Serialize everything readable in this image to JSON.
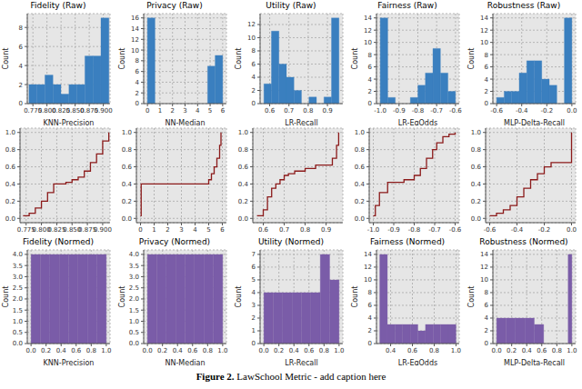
{
  "chart_data": [
    {
      "type": "histogram",
      "title": "Fidelity (Raw)",
      "x_label": "KNN-Precision",
      "y_label": "Count",
      "color": "#3a7fbf",
      "grid": true,
      "bins": [
        0.768,
        0.7822,
        0.7964,
        0.8106,
        0.8248,
        0.839,
        0.8532,
        0.8674,
        0.8816,
        0.8958,
        0.91
      ],
      "counts": [
        2,
        2,
        3,
        2,
        1,
        2,
        2,
        5,
        5,
        9
      ],
      "xlim": [
        0.765,
        0.912
      ],
      "xticks": [
        0.775,
        {
          "value": 0.8,
          "label": "0.800"
        },
        0.825,
        {
          "value": 0.85,
          "label": "0.850"
        },
        0.875,
        {
          "value": 0.9,
          "label": "0.900"
        }
      ],
      "ylim": [
        0,
        9.45
      ],
      "yticks": [
        0,
        2,
        4,
        6,
        8
      ]
    },
    {
      "type": "histogram",
      "title": "Privacy (Raw)",
      "x_label": "NN-Median",
      "y_label": "Count",
      "color": "#3a7fbf",
      "grid": true,
      "bins": [
        0,
        0.6,
        1.2,
        1.8,
        2.4,
        3.0,
        3.6,
        4.2,
        4.8,
        5.4,
        6.0
      ],
      "counts": [
        16,
        0,
        0,
        0,
        0,
        0,
        0,
        0,
        7,
        9
      ],
      "xlim": [
        -0.3,
        6.3
      ],
      "xticks": [
        0,
        1,
        2,
        3,
        4,
        5,
        6
      ],
      "ylim": [
        0,
        16.8
      ],
      "yticks": [
        0,
        2,
        4,
        6,
        8,
        10,
        12,
        14,
        16
      ]
    },
    {
      "type": "histogram",
      "title": "Utility (Raw)",
      "x_label": "LR-Recall",
      "y_label": "Count",
      "color": "#3a7fbf",
      "grid": true,
      "bins": [
        0.57,
        0.609,
        0.648,
        0.687,
        0.726,
        0.765,
        0.804,
        0.843,
        0.882,
        0.921,
        0.96
      ],
      "counts": [
        3,
        11,
        6,
        4,
        2,
        0,
        1,
        0,
        1,
        13
      ],
      "xlim": [
        0.55,
        0.98
      ],
      "xticks": [
        0.6,
        0.7,
        0.8,
        0.9
      ],
      "ylim": [
        0,
        13.65
      ],
      "yticks": [
        0,
        2,
        4,
        6,
        8,
        10,
        12
      ]
    },
    {
      "type": "histogram",
      "title": "Fairness (Raw)",
      "x_label": "LR-EqOdds",
      "y_label": "Count",
      "color": "#3a7fbf",
      "grid": true,
      "bins": [
        -1.0,
        -0.96,
        -0.92,
        -0.88,
        -0.84,
        -0.8,
        -0.76,
        -0.72,
        -0.68,
        -0.64,
        -0.6
      ],
      "counts": [
        14,
        1,
        0,
        0,
        1,
        3,
        5,
        9,
        5,
        2
      ],
      "xlim": [
        -1.02,
        -0.58
      ],
      "xticks": [
        {
          "value": -1,
          "label": "-1.0"
        },
        -0.9,
        -0.8,
        -0.7,
        -0.6
      ],
      "ylim": [
        0,
        14.7
      ],
      "yticks": [
        0,
        2,
        4,
        6,
        8,
        10,
        12,
        14
      ]
    },
    {
      "type": "histogram",
      "title": "Robustness (Raw)",
      "x_label": "MLP-Delta-Recall",
      "y_label": "Count",
      "color": "#3a7fbf",
      "grid": true,
      "bins": [
        -0.6,
        -0.54,
        -0.48,
        -0.42,
        -0.36,
        -0.3,
        -0.24,
        -0.18,
        -0.12,
        -0.06,
        0.0
      ],
      "counts": [
        1,
        2,
        2,
        5,
        7,
        7,
        4,
        3,
        0,
        14
      ],
      "xlim": [
        -0.63,
        0.03
      ],
      "xticks": [
        -0.6,
        -0.4,
        -0.2,
        {
          "value": 0,
          "label": "0.0"
        }
      ],
      "ylim": [
        0,
        14.7
      ],
      "yticks": [
        0,
        2,
        4,
        6,
        8,
        10,
        12,
        14
      ]
    },
    {
      "type": "line",
      "line_style": "step",
      "color": "#8b1a1a",
      "grid": true,
      "x": [
        0.77,
        0.78,
        0.79,
        0.8,
        0.81,
        0.82,
        0.83,
        0.84,
        0.85,
        0.86,
        0.87,
        0.88,
        0.89,
        0.9,
        0.91
      ],
      "values": [
        0.03,
        0.06,
        0.12,
        0.2,
        0.3,
        0.4,
        0.4,
        0.42,
        0.45,
        0.48,
        0.55,
        0.65,
        0.75,
        0.9,
        1.0
      ],
      "xlim": [
        0.765,
        0.912
      ],
      "xticks": [
        0.775,
        {
          "value": 0.8,
          "label": "0.800"
        },
        0.825,
        {
          "value": 0.85,
          "label": "0.850"
        },
        0.875,
        {
          "value": 0.9,
          "label": "0.900"
        }
      ],
      "ylim": [
        -0.05,
        1.05
      ],
      "yticks": [
        {
          "value": 0,
          "label": "0.0"
        },
        0.2,
        0.4,
        0.6,
        0.8,
        {
          "value": 1,
          "label": "1.0"
        }
      ]
    },
    {
      "type": "line",
      "line_style": "step",
      "color": "#8b1a1a",
      "grid": true,
      "x": [
        0,
        0.05,
        5.0,
        5.2,
        5.4,
        5.6,
        5.8,
        5.9
      ],
      "values": [
        0.03,
        0.4,
        0.45,
        0.52,
        0.6,
        0.7,
        0.85,
        1.0
      ],
      "xlim": [
        -0.3,
        6.3
      ],
      "xticks": [
        0,
        1,
        2,
        3,
        4,
        5,
        6
      ],
      "ylim": [
        -0.05,
        1.05
      ],
      "yticks": [
        {
          "value": 0,
          "label": "0.0"
        },
        0.2,
        0.4,
        0.6,
        0.8,
        {
          "value": 1,
          "label": "1.0"
        }
      ]
    },
    {
      "type": "line",
      "line_style": "step",
      "color": "#8b1a1a",
      "grid": true,
      "x": [
        0.57,
        0.6,
        0.62,
        0.64,
        0.66,
        0.68,
        0.7,
        0.72,
        0.75,
        0.8,
        0.85,
        0.92,
        0.93,
        0.95,
        0.96
      ],
      "values": [
        0.03,
        0.1,
        0.25,
        0.35,
        0.4,
        0.45,
        0.5,
        0.52,
        0.55,
        0.58,
        0.62,
        0.62,
        0.7,
        0.85,
        1.0
      ],
      "xlim": [
        0.55,
        0.98
      ],
      "xticks": [
        0.6,
        0.7,
        0.8,
        0.9
      ],
      "ylim": [
        -0.05,
        1.05
      ],
      "yticks": [
        {
          "value": 0,
          "label": "0.0"
        },
        0.2,
        0.4,
        0.6,
        0.8,
        {
          "value": 1,
          "label": "1.0"
        }
      ]
    },
    {
      "type": "line",
      "line_style": "step",
      "color": "#8b1a1a",
      "grid": true,
      "x": [
        -1.0,
        -0.99,
        -0.97,
        -0.93,
        -0.85,
        -0.8,
        -0.77,
        -0.74,
        -0.71,
        -0.69,
        -0.66,
        -0.63,
        -0.6
      ],
      "values": [
        0.03,
        0.15,
        0.3,
        0.42,
        0.45,
        0.5,
        0.58,
        0.7,
        0.8,
        0.88,
        0.95,
        0.98,
        1.0
      ],
      "xlim": [
        -1.02,
        -0.58
      ],
      "xticks": [
        {
          "value": -1,
          "label": "-1.0"
        },
        -0.9,
        -0.8,
        -0.7,
        -0.6
      ],
      "ylim": [
        -0.05,
        1.05
      ],
      "yticks": [
        {
          "value": 0,
          "label": "0.0"
        },
        0.2,
        0.4,
        0.6,
        0.8,
        {
          "value": 1,
          "label": "1.0"
        }
      ]
    },
    {
      "type": "line",
      "line_style": "step",
      "color": "#8b1a1a",
      "grid": true,
      "x": [
        -0.6,
        -0.55,
        -0.5,
        -0.45,
        -0.4,
        -0.35,
        -0.3,
        -0.25,
        -0.2,
        -0.15,
        -0.1,
        -0.05,
        0.0
      ],
      "values": [
        0.03,
        0.06,
        0.1,
        0.15,
        0.25,
        0.35,
        0.45,
        0.52,
        0.6,
        0.65,
        0.65,
        0.65,
        1.0
      ],
      "xlim": [
        -0.63,
        0.03
      ],
      "xticks": [
        -0.6,
        -0.4,
        -0.2,
        {
          "value": 0,
          "label": "0.0"
        }
      ],
      "ylim": [
        -0.05,
        1.05
      ],
      "yticks": [
        {
          "value": 0,
          "label": "0.0"
        },
        0.2,
        0.4,
        0.6,
        0.8,
        {
          "value": 1,
          "label": "1.0"
        }
      ]
    },
    {
      "type": "histogram",
      "title": "Fidelity (Normed)",
      "x_label": "KNN-Precision",
      "y_label": "Count",
      "color": "#7a5ca8",
      "grid": true,
      "bins": [
        0,
        0.125,
        0.25,
        0.375,
        0.5,
        0.625,
        0.75,
        0.875,
        1.0
      ],
      "counts": [
        4,
        4,
        4,
        4,
        4,
        4,
        4,
        4
      ],
      "xlim": [
        -0.05,
        1.05
      ],
      "xticks": [
        {
          "value": 0,
          "label": "0.0"
        },
        0.2,
        0.4,
        0.6,
        0.8,
        {
          "value": 1,
          "label": "1.0"
        }
      ],
      "ylim": [
        0,
        4.2
      ],
      "yticks": [
        {
          "value": 0,
          "label": "0.0"
        },
        0.5,
        {
          "value": 1,
          "label": "1.0"
        },
        1.5,
        {
          "value": 2,
          "label": "2.0"
        },
        2.5,
        {
          "value": 3,
          "label": "3.0"
        },
        3.5,
        {
          "value": 4,
          "label": "4.0"
        }
      ]
    },
    {
      "type": "histogram",
      "title": "Privacy (Normed)",
      "x_label": "NN-Median",
      "y_label": "Count",
      "color": "#7a5ca8",
      "grid": true,
      "bins": [
        0,
        0.125,
        0.25,
        0.375,
        0.5,
        0.625,
        0.75,
        0.875,
        1.0
      ],
      "counts": [
        4,
        4,
        4,
        4,
        4,
        4,
        4,
        4
      ],
      "xlim": [
        -0.05,
        1.05
      ],
      "xticks": [
        {
          "value": 0,
          "label": "0.0"
        },
        0.2,
        0.4,
        0.6,
        0.8,
        {
          "value": 1,
          "label": "1.0"
        }
      ],
      "ylim": [
        0,
        4.2
      ],
      "yticks": [
        {
          "value": 0,
          "label": "0.0"
        },
        0.5,
        {
          "value": 1,
          "label": "1.0"
        },
        1.5,
        {
          "value": 2,
          "label": "2.0"
        },
        2.5,
        {
          "value": 3,
          "label": "3.0"
        },
        3.5,
        {
          "value": 4,
          "label": "4.0"
        }
      ]
    },
    {
      "type": "histogram",
      "title": "Utility (Normed)",
      "x_label": "LR-Recall",
      "y_label": "Count",
      "color": "#7a5ca8",
      "grid": true,
      "bins": [
        0,
        0.125,
        0.25,
        0.375,
        0.5,
        0.625,
        0.75,
        0.875,
        1.0
      ],
      "counts": [
        4,
        4,
        4,
        4,
        4,
        4,
        7,
        5
      ],
      "xlim": [
        -0.05,
        1.05
      ],
      "xticks": [
        {
          "value": 0,
          "label": "0.0"
        },
        0.2,
        0.4,
        0.6,
        0.8,
        {
          "value": 1,
          "label": "1.0"
        }
      ],
      "ylim": [
        0,
        7.35
      ],
      "yticks": [
        0,
        1,
        2,
        3,
        4,
        5,
        6,
        7
      ]
    },
    {
      "type": "histogram",
      "title": "Fairness (Normed)",
      "x_label": "LR-EqOdds",
      "y_label": "Count",
      "color": "#7a5ca8",
      "grid": true,
      "bins": [
        0.3,
        0.37,
        0.44,
        0.51,
        0.58,
        0.65,
        0.72,
        0.79,
        0.86,
        0.93,
        1.0
      ],
      "counts": [
        14,
        3,
        3,
        3,
        3,
        2,
        3,
        3,
        3,
        3
      ],
      "xlim": [
        0.27,
        1.03
      ],
      "xticks": [
        0.4,
        0.6,
        0.8,
        {
          "value": 1,
          "label": "1.0"
        }
      ],
      "ylim": [
        0,
        14.7
      ],
      "yticks": [
        0,
        2,
        4,
        6,
        8,
        10,
        12,
        14
      ]
    },
    {
      "type": "histogram",
      "title": "Robustness (Normed)",
      "x_label": "MLP-Delta-Recall",
      "y_label": "Count",
      "color": "#7a5ca8",
      "grid": true,
      "bins": [
        0,
        0.125,
        0.25,
        0.375,
        0.5,
        0.625,
        0.95,
        1.0
      ],
      "counts": [
        4,
        4,
        4,
        4,
        3,
        0,
        14
      ],
      "xlim": [
        -0.05,
        1.05
      ],
      "xticks": [
        {
          "value": 0,
          "label": "0.0"
        },
        0.2,
        0.4,
        0.6,
        0.8,
        {
          "value": 1,
          "label": "1.0"
        }
      ],
      "ylim": [
        0,
        14.7
      ],
      "yticks": [
        0,
        2,
        4,
        6,
        8,
        10,
        12,
        14
      ]
    }
  ],
  "caption": {
    "label": "Figure 2.",
    "text": "LawSchool Metric - add caption here"
  }
}
